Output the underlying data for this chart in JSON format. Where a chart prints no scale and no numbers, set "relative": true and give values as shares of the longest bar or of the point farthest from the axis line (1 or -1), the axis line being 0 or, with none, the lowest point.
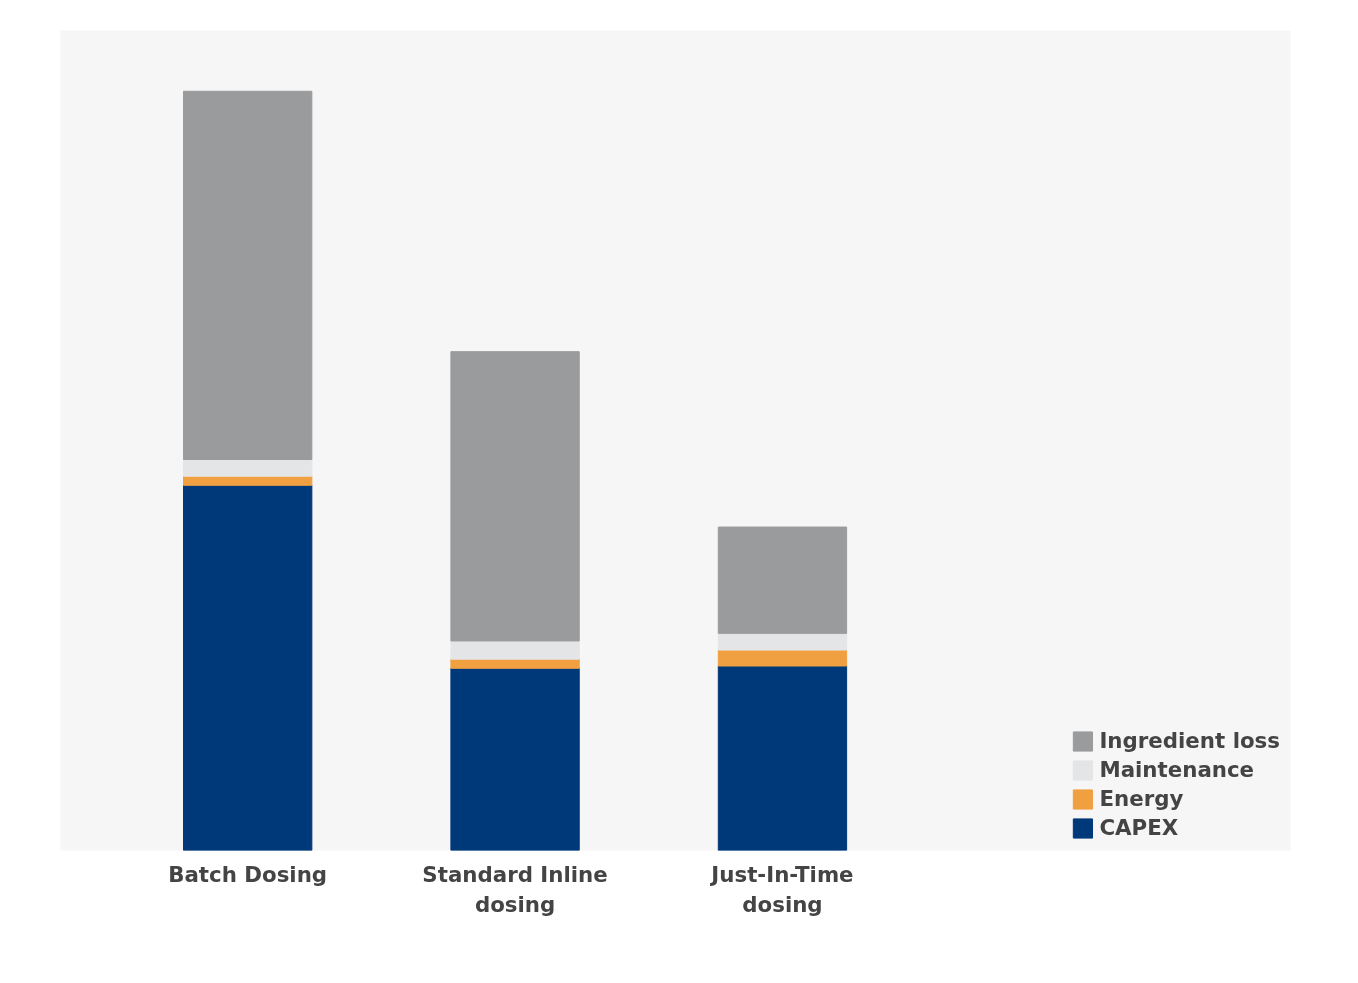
{
  "chart_data": {
    "type": "bar",
    "stacked": true,
    "relative": true,
    "categories": [
      "Batch Dosing",
      "Standard Inline dosing",
      "Just-In-Time dosing"
    ],
    "series": [
      {
        "name": "CAPEX",
        "color": "#00397a",
        "values": [
          0.481,
          0.24,
          0.243
        ]
      },
      {
        "name": "Energy",
        "color": "#f0a040",
        "values": [
          0.012,
          0.012,
          0.021
        ]
      },
      {
        "name": "Maintenance",
        "color": "#e4e5e6",
        "values": [
          0.022,
          0.024,
          0.022
        ]
      },
      {
        "name": "Ingredient loss",
        "color": "#9a9b9d",
        "values": [
          0.485,
          0.381,
          0.14
        ]
      }
    ],
    "legend": "bottom right",
    "grid": false
  }
}
